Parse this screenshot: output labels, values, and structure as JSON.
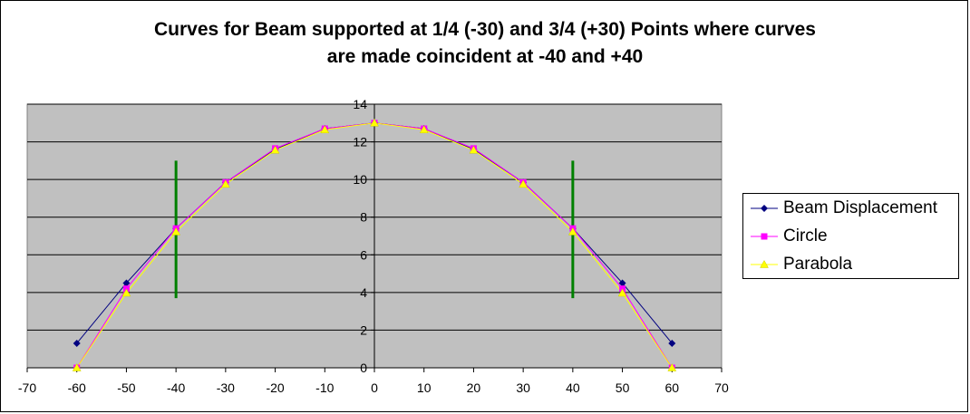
{
  "chart_data": {
    "type": "line",
    "title_lines": [
      "Curves for Beam supported at 1/4 (-30) and 3/4 (+30) Points where curves",
      "are made coincident at -40 and +40"
    ],
    "xlim": [
      -70,
      70
    ],
    "ylim": [
      0,
      14
    ],
    "x_ticks": [
      -70,
      -60,
      -50,
      -40,
      -30,
      -20,
      -10,
      0,
      10,
      20,
      30,
      40,
      50,
      60,
      70
    ],
    "y_ticks": [
      0,
      2,
      4,
      6,
      8,
      10,
      12,
      14
    ],
    "grid": "horizontal",
    "plot_background": "#c0c0c0",
    "legend_position": "right",
    "x": [
      -60,
      -50,
      -40,
      -30,
      -20,
      -10,
      0,
      10,
      20,
      30,
      40,
      50,
      60
    ],
    "series": [
      {
        "name": "Beam Displacement",
        "color": "#000080",
        "marker": "diamond",
        "values": [
          1.3,
          4.5,
          7.4,
          9.85,
          11.6,
          12.7,
          13.0,
          12.7,
          11.6,
          9.85,
          7.4,
          4.5,
          1.3
        ]
      },
      {
        "name": "Circle",
        "color": "#ff00ff",
        "marker": "square",
        "values": [
          0,
          4.2,
          7.4,
          9.85,
          11.65,
          12.7,
          13.0,
          12.7,
          11.65,
          9.85,
          7.4,
          4.2,
          0
        ]
      },
      {
        "name": "Parabola",
        "color": "#ffff00",
        "marker": "triangle",
        "values": [
          0,
          3.97,
          7.22,
          9.75,
          11.56,
          12.64,
          13.0,
          12.64,
          11.56,
          9.75,
          7.22,
          3.97,
          0
        ]
      }
    ],
    "vertical_markers": [
      {
        "x": -40,
        "y_from": 3.7,
        "y_to": 11.0,
        "color": "#008000"
      },
      {
        "x": 40,
        "y_from": 3.7,
        "y_to": 11.0,
        "color": "#008000"
      }
    ]
  }
}
